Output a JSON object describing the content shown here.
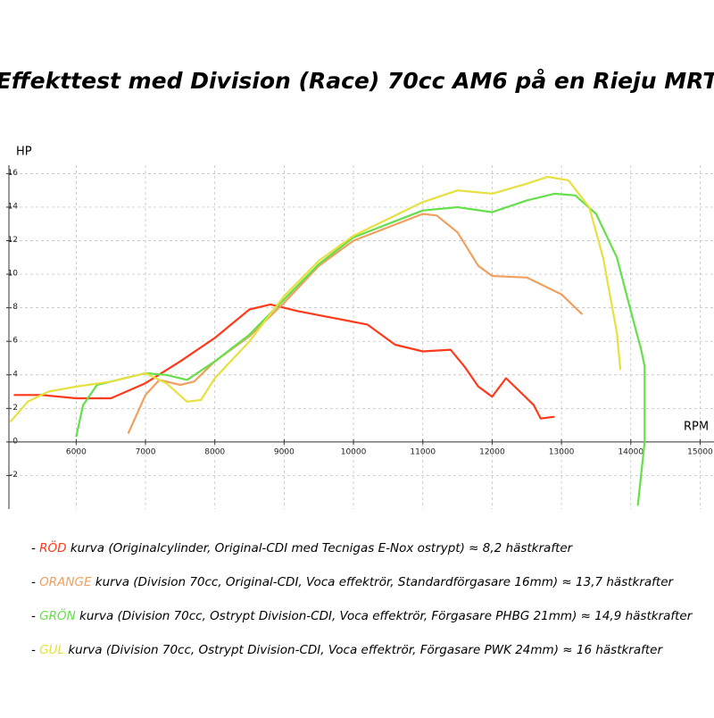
{
  "chart_data": {
    "type": "line",
    "title": "Effekttest med Division (Race) 70cc AM6 på en Rieju MRT",
    "y_label": "HP",
    "x_label": "RPM",
    "xlim": [
      5030,
      15200
    ],
    "ylim": [
      -4,
      16.5
    ],
    "xticks": [
      6000,
      7000,
      8000,
      9000,
      10000,
      11000,
      12000,
      13000,
      14000,
      15000
    ],
    "yticks": [
      -2,
      0,
      2,
      4,
      6,
      8,
      10,
      12,
      14,
      16
    ],
    "grid": true,
    "legend_marker": "-",
    "series": [
      {
        "name": "RÖD",
        "description": " kurva (Originalcylinder, Original-CDI med Tecnigas E-Nox ostrypt) ≈ 8,2 hästkrafter",
        "color": "#ff3a1a",
        "x": [
          5100,
          5500,
          6000,
          6500,
          7000,
          7500,
          8000,
          8500,
          8800,
          9200,
          9700,
          10200,
          10600,
          11000,
          11400,
          11600,
          11800,
          12000,
          12200,
          12400,
          12600,
          12700,
          12900
        ],
        "values": [
          2.8,
          2.8,
          2.6,
          2.6,
          3.5,
          4.8,
          6.2,
          7.9,
          8.2,
          7.8,
          7.4,
          7.0,
          5.8,
          5.4,
          5.5,
          4.5,
          3.3,
          2.7,
          3.8,
          3.0,
          2.2,
          1.4,
          1.5
        ]
      },
      {
        "name": "ORANGE",
        "description": " kurva (Division 70cc, Original-CDI, Voca effektrör, Standardförgasare 16mm) ≈ 13,7 hästkrafter",
        "color": "#f0a060",
        "x": [
          6750,
          7000,
          7200,
          7500,
          7700,
          8000,
          8500,
          9000,
          9500,
          10000,
          10500,
          11000,
          11200,
          11500,
          11800,
          12000,
          12500,
          13000,
          13300
        ],
        "values": [
          0.5,
          2.8,
          3.7,
          3.4,
          3.6,
          4.8,
          6.3,
          8.3,
          10.5,
          12.0,
          12.8,
          13.6,
          13.5,
          12.5,
          10.5,
          9.9,
          9.8,
          8.8,
          7.6
        ]
      },
      {
        "name": "GRÖN",
        "description": " kurva (Division 70cc, Ostrypt Division-CDI, Voca effektrör, Förgasare PHBG 21mm) ≈ 14,9 hästkrafter",
        "color": "#66e04a",
        "x": [
          6000,
          6100,
          6300,
          6700,
          7000,
          7300,
          7600,
          8000,
          8500,
          9000,
          9500,
          10000,
          10500,
          11000,
          11500,
          12000,
          12500,
          12900,
          13200,
          13500,
          13800,
          14000,
          14150,
          14200,
          14200,
          14100
        ],
        "values": [
          0.3,
          2.2,
          3.4,
          3.8,
          4.1,
          4.0,
          3.7,
          4.8,
          6.4,
          8.5,
          10.6,
          12.2,
          13.0,
          13.8,
          14.0,
          13.7,
          14.4,
          14.8,
          14.7,
          13.6,
          11.0,
          7.8,
          5.5,
          4.5,
          0,
          -3.8
        ]
      },
      {
        "name": "GUL",
        "description": " kurva (Division 70cc, Ostrypt Division-CDI, Voca effektrör, Förgasare PWK 24mm) ≈ 16 hästkrafter",
        "color": "#e6e040",
        "x": [
          5050,
          5300,
          5600,
          6000,
          6500,
          7000,
          7300,
          7600,
          7800,
          8000,
          8500,
          9000,
          9500,
          10000,
          10500,
          11000,
          11500,
          12000,
          12500,
          12800,
          13100,
          13400,
          13600,
          13800,
          13850
        ],
        "values": [
          1.2,
          2.4,
          3.0,
          3.3,
          3.6,
          4.1,
          3.5,
          2.4,
          2.5,
          3.8,
          6.0,
          8.7,
          10.8,
          12.3,
          13.3,
          14.3,
          15.0,
          14.8,
          15.4,
          15.8,
          15.6,
          14.0,
          11.0,
          6.5,
          4.3
        ]
      }
    ]
  }
}
